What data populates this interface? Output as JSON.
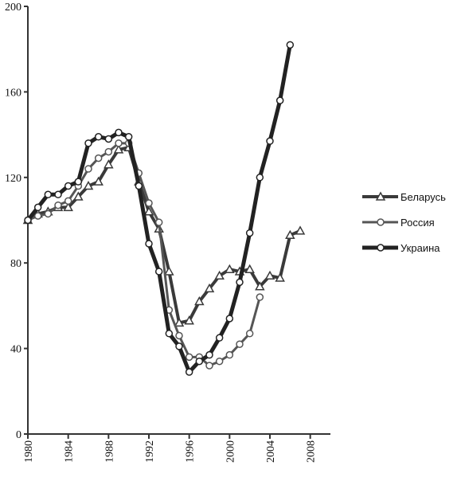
{
  "chart_data": {
    "type": "line",
    "x": [
      1980,
      1981,
      1982,
      1983,
      1984,
      1985,
      1986,
      1987,
      1988,
      1989,
      1990,
      1991,
      1992,
      1993,
      1994,
      1995,
      1996,
      1997,
      1998,
      1999,
      2000,
      2001,
      2002,
      2003,
      2004,
      2005,
      2006,
      2007
    ],
    "series": [
      {
        "name": "Беларусь",
        "color": "#3a3a3a",
        "marker": "triangle",
        "values": [
          100,
          103,
          104,
          106,
          106,
          111,
          116,
          118,
          126,
          133,
          134,
          118,
          104,
          96,
          76,
          52,
          53,
          62,
          68,
          74,
          77,
          76,
          77,
          69,
          74,
          73,
          93,
          95
        ]
      },
      {
        "name": "Россия",
        "color": "#555555",
        "marker": "circle",
        "values": [
          100,
          102,
          103,
          107,
          109,
          116,
          124,
          129,
          132,
          136,
          136,
          122,
          108,
          99,
          58,
          46,
          36,
          36,
          32,
          34,
          37,
          42,
          47,
          64,
          null,
          null,
          null,
          null
        ]
      },
      {
        "name": "Украина",
        "color": "#222222",
        "marker": "circle",
        "values": [
          100,
          106,
          112,
          112,
          116,
          118,
          136,
          139,
          138,
          141,
          139,
          116,
          89,
          76,
          47,
          41,
          29,
          34,
          37,
          45,
          54,
          71,
          94,
          120,
          137,
          156,
          182,
          null
        ]
      }
    ],
    "xlim": [
      1980,
      2010
    ],
    "xticks": [
      1980,
      1984,
      1988,
      1992,
      1996,
      2000,
      2004,
      2008
    ],
    "ylim": [
      0,
      200
    ],
    "yticks": [
      0,
      40,
      80,
      120,
      160,
      200
    ]
  }
}
